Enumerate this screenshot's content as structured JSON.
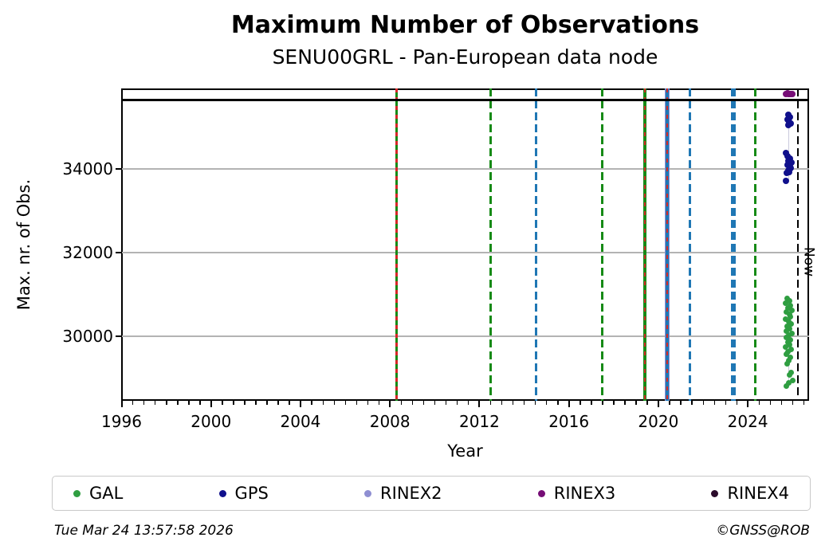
{
  "header": {
    "title": "Maximum Number of Observations",
    "subtitle": "SENU00GRL - Pan-European data node"
  },
  "footer": {
    "timestamp": "Tue Mar 24 13:57:58 2026",
    "credit": "©GNSS@ROB"
  },
  "legend": {
    "items": [
      {
        "label": "GAL",
        "color": "#2f9e41"
      },
      {
        "label": "GPS",
        "color": "#10108c"
      },
      {
        "label": "RINEX2",
        "color": "#8f8fd2"
      },
      {
        "label": "RINEX3",
        "color": "#760d76"
      },
      {
        "label": "RINEX4",
        "color": "#2b0b2b"
      }
    ]
  },
  "chart_data": {
    "type": "scatter",
    "title": "Maximum Number of Observations",
    "subtitle": "SENU00GRL - Pan-European data node",
    "xlabel": "Year",
    "ylabel": "Max. nr. of Obs.",
    "xlim": [
      1996,
      2026.74
    ],
    "ylim": [
      28470,
      35920
    ],
    "xticks": [
      1996,
      2000,
      2004,
      2008,
      2012,
      2016,
      2020,
      2024
    ],
    "x_minor_step": 0.5,
    "yticks": [
      30000,
      32000,
      34000
    ],
    "grid": "horizontal-only",
    "gridline_color": "#b3b3b3",
    "max_obs_line": {
      "value": 35650,
      "color": "#000000",
      "style": "solid"
    },
    "now_line": {
      "year": 2026.23,
      "label": "Now",
      "color": "#000000",
      "style": "dashed"
    },
    "event_lines": [
      {
        "year": 2008.3,
        "layers": [
          {
            "color": "#168a16",
            "style": "solid",
            "width": 3.5
          },
          {
            "color": "#d62728",
            "style": "dotted",
            "width": 2.5
          }
        ]
      },
      {
        "year": 2012.5,
        "layers": [
          {
            "color": "#168a16",
            "style": "dashed",
            "width": 3
          }
        ]
      },
      {
        "year": 2014.55,
        "layers": [
          {
            "color": "#1f77b4",
            "style": "dashed",
            "width": 3
          }
        ]
      },
      {
        "year": 2017.5,
        "layers": [
          {
            "color": "#168a16",
            "style": "dashed",
            "width": 3
          }
        ]
      },
      {
        "year": 2019.4,
        "layers": [
          {
            "color": "#168a16",
            "style": "solid",
            "width": 3.5
          },
          {
            "color": "#d62728",
            "style": "dotted",
            "width": 2.5
          }
        ]
      },
      {
        "year": 2020.4,
        "layers": [
          {
            "color": "#8f8fd2",
            "style": "solid",
            "width": 6
          },
          {
            "color": "#1f77b4",
            "style": "solid",
            "width": 3.5
          },
          {
            "color": "#d62728",
            "style": "dotted",
            "width": 2.5
          }
        ]
      },
      {
        "year": 2021.4,
        "layers": [
          {
            "color": "#1f77b4",
            "style": "dashed",
            "width": 3
          }
        ]
      },
      {
        "year": 2023.35,
        "layers": [
          {
            "color": "#1f77b4",
            "style": "dashed",
            "width": 6
          }
        ]
      },
      {
        "year": 2024.35,
        "layers": [
          {
            "color": "#168a16",
            "style": "dashed",
            "width": 3
          }
        ]
      }
    ],
    "series": [
      {
        "name": "GAL",
        "color": "#2f9e41",
        "marker_px": 7,
        "points": [
          [
            2025.75,
            30920
          ],
          [
            2025.88,
            30860
          ],
          [
            2025.7,
            30800
          ],
          [
            2025.92,
            30745
          ],
          [
            2025.8,
            30690
          ],
          [
            2025.96,
            30635
          ],
          [
            2025.72,
            30580
          ],
          [
            2025.85,
            30525
          ],
          [
            2025.9,
            30470
          ],
          [
            2025.68,
            30415
          ],
          [
            2025.82,
            30360
          ],
          [
            2025.94,
            30305
          ],
          [
            2025.76,
            30250
          ],
          [
            2025.87,
            30195
          ],
          [
            2025.71,
            30140
          ],
          [
            2025.97,
            30085
          ],
          [
            2025.83,
            30030
          ],
          [
            2025.74,
            29975
          ],
          [
            2025.91,
            29920
          ],
          [
            2025.79,
            29865
          ],
          [
            2025.86,
            29810
          ],
          [
            2025.69,
            29755
          ],
          [
            2025.95,
            29700
          ],
          [
            2025.81,
            29640
          ],
          [
            2025.73,
            29580
          ],
          [
            2025.89,
            29510
          ],
          [
            2025.84,
            29430
          ],
          [
            2025.77,
            29350
          ],
          [
            2025.93,
            29150
          ],
          [
            2025.85,
            29095
          ],
          [
            2026.0,
            28950
          ],
          [
            2025.83,
            28890
          ],
          [
            2025.74,
            28830
          ]
        ]
      },
      {
        "name": "GPS",
        "color": "#10108c",
        "marker_px": 8,
        "points": [
          [
            2025.82,
            35300
          ],
          [
            2025.9,
            35245
          ],
          [
            2025.78,
            35185
          ],
          [
            2025.86,
            35125
          ],
          [
            2025.93,
            35075
          ],
          [
            2025.81,
            35045
          ],
          [
            2025.72,
            34380
          ],
          [
            2025.79,
            34300
          ],
          [
            2025.9,
            34245
          ],
          [
            2025.83,
            34195
          ],
          [
            2025.95,
            34145
          ],
          [
            2025.76,
            34100
          ],
          [
            2025.87,
            34055
          ],
          [
            2025.92,
            34010
          ],
          [
            2025.8,
            33965
          ],
          [
            2025.85,
            33925
          ],
          [
            2025.74,
            33900
          ],
          [
            2025.71,
            33715
          ]
        ]
      },
      {
        "name": "RINEX2",
        "color": "#8f8fd2",
        "marker_px": 7,
        "points": []
      },
      {
        "name": "RINEX3",
        "color": "#760d76",
        "marker_px": 8,
        "points": [
          [
            2025.7,
            35790
          ],
          [
            2025.78,
            35800
          ],
          [
            2025.85,
            35788
          ],
          [
            2025.92,
            35778
          ],
          [
            2025.99,
            35792
          ],
          [
            2025.81,
            35795
          ],
          [
            2025.88,
            35782
          ]
        ]
      },
      {
        "name": "RINEX4",
        "color": "#2b0b2b",
        "marker_px": 7,
        "points": []
      }
    ]
  }
}
